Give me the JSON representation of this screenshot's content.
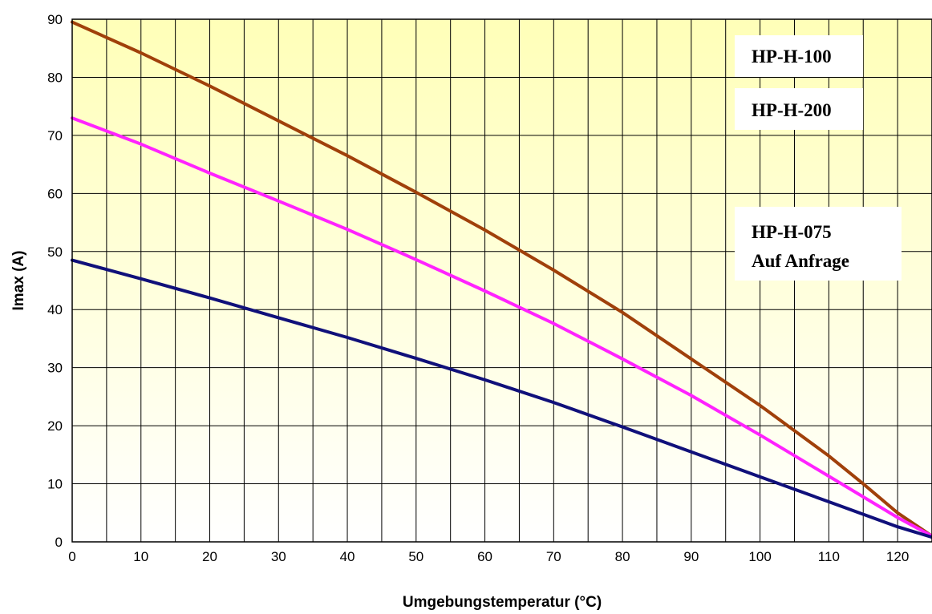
{
  "chart_data": {
    "type": "line",
    "title": "",
    "xlabel": "Umgebungstemperatur (°C)",
    "ylabel": "Imax (A)",
    "xlim": [
      0,
      125
    ],
    "ylim": [
      0,
      90
    ],
    "x_ticks": [
      0,
      10,
      20,
      30,
      40,
      50,
      60,
      70,
      80,
      90,
      100,
      110,
      120
    ],
    "y_ticks": [
      0,
      10,
      20,
      30,
      40,
      50,
      60,
      70,
      80,
      90
    ],
    "grid": true,
    "background": "light-yellow gradient",
    "series": [
      {
        "name": "HP-H-075",
        "color": "#A0400A",
        "x": [
          0,
          10,
          20,
          30,
          40,
          50,
          60,
          70,
          80,
          90,
          100,
          110,
          115,
          120,
          125
        ],
        "y": [
          89.5,
          84.2,
          78.5,
          72.5,
          66.5,
          60.2,
          53.7,
          46.8,
          39.5,
          31.5,
          23.5,
          14.8,
          10.0,
          5.0,
          1.0
        ]
      },
      {
        "name": "HP-H-100",
        "color": "#FF22FF",
        "x": [
          0,
          10,
          20,
          30,
          40,
          50,
          60,
          70,
          80,
          90,
          100,
          110,
          120,
          125
        ],
        "y": [
          73.0,
          68.5,
          63.5,
          58.7,
          53.8,
          48.6,
          43.2,
          37.6,
          31.5,
          25.2,
          18.4,
          11.3,
          4.2,
          1.0
        ]
      },
      {
        "name": "HP-H-200",
        "color": "#10107A",
        "x": [
          0,
          10,
          20,
          30,
          40,
          50,
          60,
          70,
          80,
          90,
          100,
          110,
          120,
          125
        ],
        "y": [
          48.5,
          45.3,
          42.0,
          38.6,
          35.2,
          31.6,
          27.9,
          24.0,
          19.8,
          15.5,
          11.2,
          6.9,
          2.6,
          0.8
        ]
      }
    ],
    "annotations": [
      {
        "lines": [
          "HP-H-100"
        ],
        "color": "#FF44AA"
      },
      {
        "lines": [
          "HP-H-200"
        ],
        "color": "#10107A"
      },
      {
        "lines": [
          "HP-H-075",
          "Auf Anfrage"
        ],
        "color": "#A0400A"
      }
    ]
  }
}
